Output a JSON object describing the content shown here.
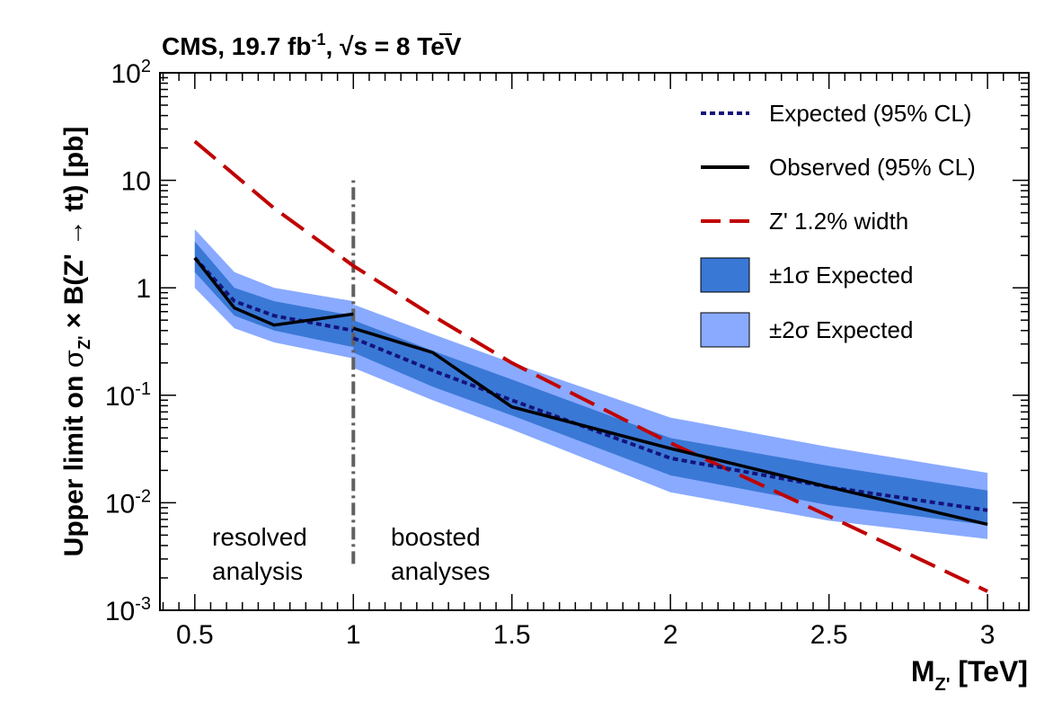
{
  "chart_data": {
    "type": "line",
    "title_parts": {
      "prefix": "CMS, 19.7 fb",
      "sup": "-1",
      "mid": ", ",
      "sqrt": "√",
      "s": "s",
      "suffix": " = 8 TeV"
    },
    "xlabel": {
      "main": "M",
      "sub": "Z'",
      "unit": " [TeV]"
    },
    "ylabel": {
      "prefix": "Upper limit on ",
      "sigma": "σ",
      "sigma_sub": "Z'",
      "mid": " × B(Z' ",
      "arrow": "→",
      "tt": " tt",
      "suffix": ") [pb]"
    },
    "xlim": [
      0.39,
      3.13
    ],
    "ylim": [
      0.001,
      100
    ],
    "yscale": "log",
    "x_ticks": [
      {
        "value": 0.5,
        "label": "0.5"
      },
      {
        "value": 1,
        "label": "1"
      },
      {
        "value": 1.5,
        "label": "1.5"
      },
      {
        "value": 2,
        "label": "2"
      },
      {
        "value": 2.5,
        "label": "2.5"
      },
      {
        "value": 3,
        "label": "3"
      }
    ],
    "y_ticks": [
      {
        "value": 100,
        "base": "10",
        "exp": "2"
      },
      {
        "value": 10,
        "base": "10",
        "exp": ""
      },
      {
        "value": 1,
        "base": "1",
        "exp": ""
      },
      {
        "value": 0.1,
        "base": "10",
        "exp": "-1"
      },
      {
        "value": 0.01,
        "base": "10",
        "exp": "-2"
      },
      {
        "value": 0.001,
        "base": "10",
        "exp": "-3"
      }
    ],
    "segments": [
      {
        "name": "resolved",
        "x": [
          0.5,
          0.625,
          0.75,
          1.0
        ],
        "expected": [
          1.9,
          0.75,
          0.55,
          0.4
        ],
        "observed": [
          1.9,
          0.65,
          0.45,
          0.57
        ],
        "band1_low": [
          1.4,
          0.55,
          0.4,
          0.28
        ],
        "band1_high": [
          2.7,
          1.0,
          0.75,
          0.55
        ],
        "band2_low": [
          1.0,
          0.42,
          0.31,
          0.22
        ],
        "band2_high": [
          3.5,
          1.4,
          1.0,
          0.75
        ]
      },
      {
        "name": "boosted",
        "x": [
          1.0,
          1.25,
          1.5,
          2.0,
          2.5,
          3.0
        ],
        "expected": [
          0.34,
          0.17,
          0.09,
          0.026,
          0.014,
          0.0085
        ],
        "observed": [
          0.42,
          0.25,
          0.078,
          0.032,
          0.014,
          0.0063
        ],
        "band1_low": [
          0.25,
          0.12,
          0.065,
          0.018,
          0.0095,
          0.0062
        ],
        "band1_high": [
          0.5,
          0.26,
          0.14,
          0.04,
          0.022,
          0.013
        ],
        "band2_low": [
          0.18,
          0.09,
          0.048,
          0.0125,
          0.0068,
          0.0046
        ],
        "band2_high": [
          0.7,
          0.37,
          0.2,
          0.062,
          0.033,
          0.019
        ]
      }
    ],
    "zprime": {
      "x": [
        0.5,
        0.75,
        1.0,
        1.25,
        1.5,
        2.0,
        2.5,
        3.0
      ],
      "y": [
        23,
        5.5,
        1.6,
        0.55,
        0.2,
        0.036,
        0.0075,
        0.0015
      ]
    },
    "divider_x": 1.0,
    "divider_range": [
      0.0027,
      10
    ],
    "colors": {
      "expected": "#14147a",
      "observed": "#000000",
      "zprime": "#c00000",
      "band1": "#3a78d6",
      "band2": "#89aaff",
      "divider": "#606060"
    },
    "annotations": {
      "resolved_1": "resolved",
      "resolved_2": "analysis",
      "boosted_1": "boosted",
      "boosted_2": "analyses"
    },
    "legend": {
      "position": "top-right",
      "entries": [
        {
          "key": "expected",
          "label": "Expected (95% CL)"
        },
        {
          "key": "observed",
          "label": "Observed (95% CL)"
        },
        {
          "key": "zprime",
          "label": "Z' 1.2% width"
        },
        {
          "key": "band1",
          "label": "±1σ Expected"
        },
        {
          "key": "band2",
          "label": "±2σ Expected"
        }
      ]
    }
  }
}
